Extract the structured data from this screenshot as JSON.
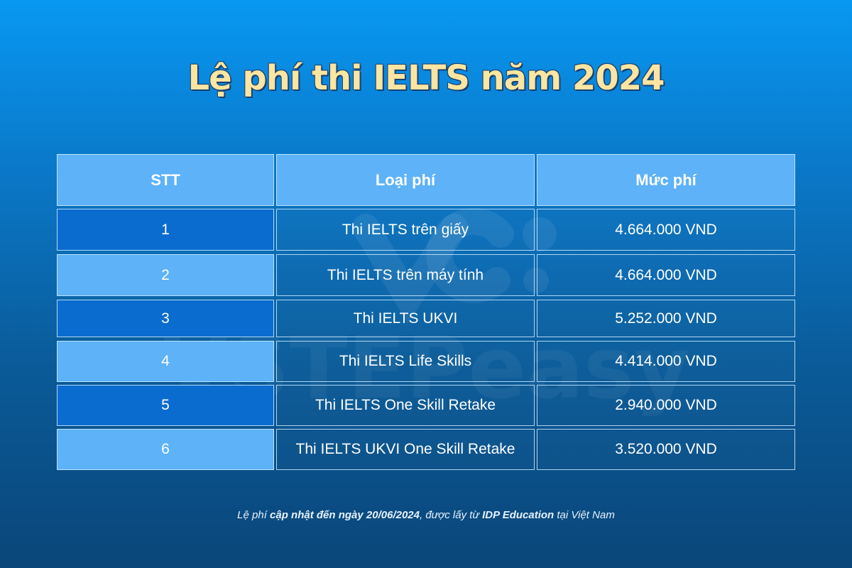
{
  "title": "Lệ phí thi IELTS năm 2024",
  "table": {
    "headers": [
      "STT",
      "Loại phí",
      "Mức phí"
    ],
    "rows": [
      {
        "stt": "1",
        "type": "Thi IELTS trên giấy",
        "fee": "4.664.000 VND"
      },
      {
        "stt": "2",
        "type": "Thi IELTS trên máy tính",
        "fee": "4.664.000 VND"
      },
      {
        "stt": "3",
        "type": "Thi IELTS UKVI",
        "fee": "5.252.000 VND"
      },
      {
        "stt": "4",
        "type": "Thi IELTS Life Skills",
        "fee": "4.414.000 VND"
      },
      {
        "stt": "5",
        "type": "Thi IELTS One Skill Retake",
        "fee": "2.940.000 VND"
      },
      {
        "stt": "6",
        "type": "Thi IELTS UKVI One Skill Retake",
        "fee": "3.520.000 VND"
      }
    ]
  },
  "footer": {
    "part1": "Lệ phí ",
    "part2": "cập nhật đến ngày 20/06/2024",
    "part3": ", được lấy từ ",
    "part4": "IDP Education",
    "part5": " tại Việt Nam"
  },
  "watermark": {
    "logo_text": "VSTEPeasy"
  },
  "colors": {
    "title": "#fbe5a0",
    "header_bg": "#5db2f8",
    "stt_dark": "#0a6ccf",
    "stt_light": "#5db2f8"
  }
}
